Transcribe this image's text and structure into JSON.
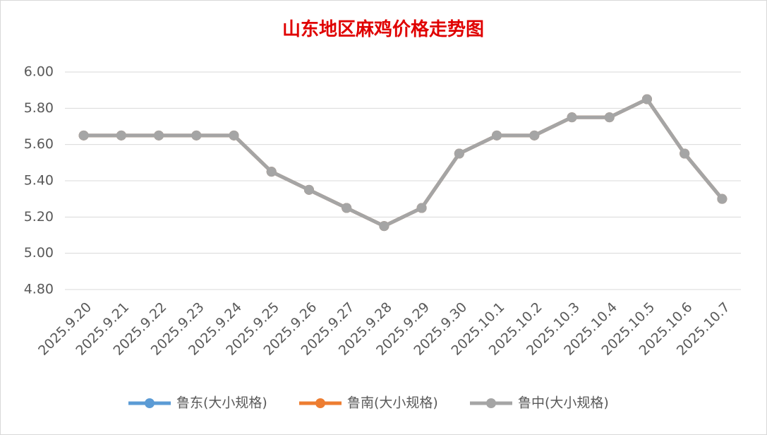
{
  "chart_data": {
    "type": "line",
    "title": "山东地区麻鸡价格走势图",
    "categories": [
      "2025.9.20",
      "2025.9.21",
      "2025.9.22",
      "2025.9.23",
      "2025.9.24",
      "2025.9.25",
      "2025.9.26",
      "2025.9.27",
      "2025.9.28",
      "2025.9.29",
      "2025.9.30",
      "2025.10.1",
      "2025.10.2",
      "2025.10.3",
      "2025.10.4",
      "2025.10.5",
      "2025.10.6",
      "2025.10.7"
    ],
    "series": [
      {
        "name": "鲁东(大小规格)",
        "color": "#5b9bd5",
        "values": [
          5.65,
          5.65,
          5.65,
          5.65,
          5.65,
          5.45,
          5.35,
          5.25,
          5.15,
          5.25,
          5.55,
          5.65,
          5.65,
          5.75,
          5.75,
          5.85,
          5.55,
          5.3
        ]
      },
      {
        "name": "鲁南(大小规格)",
        "color": "#ed7d31",
        "values": [
          5.65,
          5.65,
          5.65,
          5.65,
          5.65,
          5.45,
          5.35,
          5.25,
          5.15,
          5.25,
          5.55,
          5.65,
          5.65,
          5.75,
          5.75,
          5.85,
          5.55,
          5.3
        ]
      },
      {
        "name": "鲁中(大小规格)",
        "color": "#a5a5a5",
        "values": [
          5.65,
          5.65,
          5.65,
          5.65,
          5.65,
          5.45,
          5.35,
          5.25,
          5.15,
          5.25,
          5.55,
          5.65,
          5.65,
          5.75,
          5.75,
          5.85,
          5.55,
          5.3
        ]
      }
    ],
    "ylim": [
      4.8,
      6.0
    ],
    "yticks": [
      {
        "value": 4.8,
        "label": "4.80"
      },
      {
        "value": 5.0,
        "label": "5.00"
      },
      {
        "value": 5.2,
        "label": "5.20"
      },
      {
        "value": 5.4,
        "label": "5.40"
      },
      {
        "value": 5.6,
        "label": "5.60"
      },
      {
        "value": 5.8,
        "label": "5.80"
      },
      {
        "value": 6.0,
        "label": "6.00"
      }
    ],
    "grid": true,
    "legend": "bottom"
  }
}
